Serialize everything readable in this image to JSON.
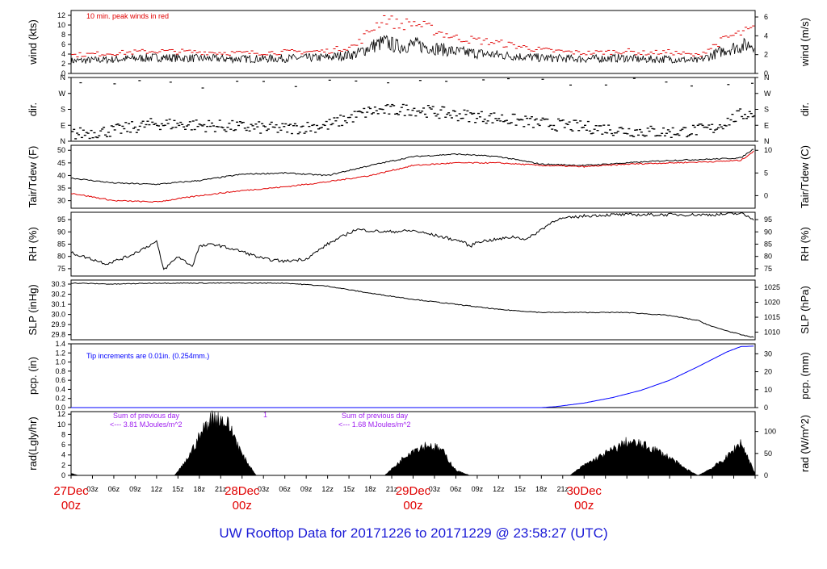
{
  "title": "UW Rooftop Data for 20171226  to  20171229 @ 23:58:27  (UTC)",
  "colors": {
    "title": "#1a1ad6",
    "date_label": "#e00000",
    "peak": "#e00000",
    "tdew": "#e00000",
    "precip": "#0000ff",
    "note_precip": "#0000ff",
    "note_rad": "#a020f0",
    "series": "#000000"
  },
  "x_axis": {
    "hour_ticks": [
      "03z",
      "06z",
      "09z",
      "12z",
      "15z",
      "18z",
      "21z",
      "03z",
      "06z",
      "09z",
      "12z",
      "15z",
      "18z",
      "21z",
      "03z",
      "06z",
      "09z",
      "12z",
      "15z",
      "18z",
      "21z"
    ],
    "date_labels": [
      {
        "date": "27Dec",
        "hour": "00z"
      },
      {
        "date": "28Dec",
        "hour": "00z"
      },
      {
        "date": "29Dec",
        "hour": "00z"
      },
      {
        "date": "30Dec",
        "hour": "00z"
      }
    ]
  },
  "notes": {
    "peak_winds": "10 min. peak winds in red",
    "tip_increments": "Tip increments are 0.01in. (0.254mm.)",
    "rad_day1_line1": "Sum of previous day",
    "rad_day1_line2": "<--- 3.81 MJoules/m^2",
    "rad_day2_line1": "Sum of previous day",
    "rad_day2_line2": "<--- 1.68 MJoules/m^2",
    "rad_marker": "1"
  },
  "panels": [
    {
      "id": "wind",
      "left_label": "wind (kts)",
      "right_label": "wind (m/s)",
      "left_ticks": [
        "0",
        "2",
        "4",
        "6",
        "8",
        "10",
        "12"
      ],
      "right_ticks": [
        "0",
        "2",
        "4",
        "6"
      ]
    },
    {
      "id": "dir",
      "left_label": "dir.",
      "right_label": "dir.",
      "left_ticks": [
        "N",
        "E",
        "S",
        "W",
        "N"
      ],
      "right_ticks": [
        "N",
        "E",
        "S",
        "W",
        "N"
      ]
    },
    {
      "id": "temp",
      "left_label": "Tair/Tdew (F)",
      "right_label": "Tair/Tdew (C)",
      "left_ticks": [
        "30",
        "35",
        "40",
        "45",
        "50"
      ],
      "right_ticks": [
        "0",
        "5",
        "10"
      ]
    },
    {
      "id": "rh",
      "left_label": "RH (%)",
      "right_label": "RH (%)",
      "left_ticks": [
        "75",
        "80",
        "85",
        "90",
        "95"
      ],
      "right_ticks": [
        "75",
        "80",
        "85",
        "90",
        "95"
      ]
    },
    {
      "id": "slp",
      "left_label": "SLP (inHg)",
      "right_label": "SLP (hPa)",
      "left_ticks": [
        "29.8",
        "29.9",
        "30.0",
        "30.1",
        "30.2",
        "30.3"
      ],
      "right_ticks": [
        "1010",
        "1015",
        "1020",
        "1025"
      ]
    },
    {
      "id": "pcp",
      "left_label": "pcp. (in)",
      "right_label": "pcp. (mm)",
      "left_ticks": [
        "0.0",
        "0.2",
        "0.4",
        "0.6",
        "0.8",
        "1.0",
        "1.2",
        "1.4"
      ],
      "right_ticks": [
        "0",
        "10",
        "20",
        "30"
      ]
    },
    {
      "id": "rad",
      "left_label": "rad(Lgly/hr)",
      "right_label": "rad (W/m^2)",
      "left_ticks": [
        "0",
        "2",
        "4",
        "6",
        "8",
        "10",
        "12"
      ],
      "right_ticks": [
        "0",
        "50",
        "100"
      ]
    }
  ],
  "chart_data": [
    {
      "type": "line",
      "panel": "wind",
      "ylabel": "wind (kts)",
      "ylim": [
        0,
        13
      ],
      "x_unit": "hours since 27Dec 00z",
      "series": [
        {
          "name": "wind",
          "values_x": [
            0,
            6,
            12,
            18,
            24,
            30,
            36,
            40,
            42,
            44,
            46,
            48,
            50,
            54,
            60,
            66,
            72,
            78,
            80,
            84,
            88,
            92,
            96
          ],
          "values_y": [
            2.6,
            2.9,
            3.3,
            3.1,
            3.0,
            3.1,
            3.3,
            4.0,
            5.5,
            6.5,
            5.5,
            6.0,
            5.5,
            4.5,
            3.8,
            3.2,
            3.0,
            3.2,
            2.9,
            3.0,
            2.6,
            5.0,
            6.2
          ]
        },
        {
          "name": "10 min. peak winds",
          "values_x": [
            0,
            6,
            12,
            18,
            24,
            30,
            36,
            40,
            42,
            44,
            46,
            48,
            50,
            54,
            60,
            66,
            72,
            78,
            80,
            84,
            88,
            92,
            96
          ],
          "values_y": [
            3.6,
            4.0,
            4.4,
            4.2,
            4.0,
            4.2,
            4.4,
            5.5,
            8.5,
            11.0,
            9.5,
            10.0,
            9.0,
            7.0,
            6.0,
            4.6,
            4.0,
            4.4,
            4.0,
            4.2,
            3.5,
            7.0,
            8.8
          ]
        }
      ]
    },
    {
      "type": "scatter",
      "panel": "dir",
      "ylabel": "dir.",
      "ylim": [
        0,
        360
      ],
      "x_unit": "hours since 27Dec 00z",
      "series": [
        {
          "name": "dir.",
          "values_x": [
            0,
            6,
            12,
            18,
            24,
            30,
            36,
            42,
            48,
            54,
            60,
            66,
            72,
            78,
            84,
            90,
            94,
            96
          ],
          "values_y": [
            40,
            60,
            100,
            90,
            80,
            70,
            90,
            170,
            180,
            150,
            130,
            100,
            80,
            60,
            50,
            70,
            150,
            160
          ]
        }
      ]
    },
    {
      "type": "line",
      "panel": "temp",
      "ylabel": "Tair/Tdew (F)",
      "ylim": [
        27,
        52
      ],
      "x_unit": "hours since 27Dec 00z",
      "series": [
        {
          "name": "Tair",
          "values_x": [
            0,
            6,
            12,
            18,
            24,
            30,
            36,
            42,
            48,
            54,
            60,
            66,
            72,
            78,
            84,
            90,
            94,
            96
          ],
          "values_y": [
            39.0,
            37.0,
            36.5,
            38.0,
            40.5,
            41.0,
            40.0,
            44.0,
            47.5,
            48.5,
            47.5,
            44.5,
            44.0,
            45.0,
            46.0,
            46.5,
            47.0,
            51.0
          ]
        },
        {
          "name": "Tdew",
          "values_x": [
            0,
            6,
            12,
            18,
            24,
            30,
            36,
            42,
            48,
            54,
            60,
            66,
            72,
            78,
            84,
            90,
            94,
            96
          ],
          "values_y": [
            33.0,
            30.0,
            29.5,
            32.0,
            34.0,
            35.5,
            37.5,
            40.0,
            44.0,
            45.0,
            45.0,
            44.0,
            43.5,
            44.5,
            45.0,
            45.5,
            46.0,
            50.0
          ]
        }
      ]
    },
    {
      "type": "line",
      "panel": "rh",
      "ylabel": "RH (%)",
      "ylim": [
        72,
        98
      ],
      "x_unit": "hours since 27Dec 00z",
      "series": [
        {
          "name": "RH",
          "values_x": [
            0,
            5,
            8,
            12,
            13,
            15,
            17,
            18,
            20,
            24,
            27,
            30,
            33,
            36,
            40,
            44,
            48,
            52,
            55,
            56,
            57,
            60,
            62,
            64,
            66,
            68,
            72,
            76,
            80,
            84,
            90,
            94,
            96
          ],
          "values_y": [
            81.5,
            77,
            80,
            86,
            74.5,
            80,
            76,
            84,
            85,
            82,
            79,
            78,
            79,
            85,
            91,
            90,
            90.5,
            88,
            86,
            84,
            86,
            87,
            88,
            87,
            91,
            95,
            96.5,
            97,
            97,
            97,
            97,
            97.5,
            95
          ]
        }
      ]
    },
    {
      "type": "line",
      "panel": "slp",
      "ylabel": "SLP (inHg)",
      "ylim": [
        29.75,
        30.34
      ],
      "x_unit": "hours since 27Dec 00z",
      "series": [
        {
          "name": "SLP",
          "values_x": [
            0,
            6,
            12,
            18,
            24,
            30,
            36,
            42,
            48,
            54,
            60,
            66,
            72,
            78,
            84,
            88,
            90,
            94,
            96
          ],
          "values_y": [
            30.31,
            30.3,
            30.31,
            30.31,
            30.31,
            30.31,
            30.28,
            30.21,
            30.15,
            30.1,
            30.05,
            30.02,
            30.02,
            30.02,
            29.99,
            29.94,
            29.88,
            29.8,
            29.77
          ]
        }
      ]
    },
    {
      "type": "line",
      "panel": "pcp",
      "ylabel": "pcp. (in)",
      "ylim": [
        0,
        1.4
      ],
      "x_unit": "hours since 27Dec 00z",
      "series": [
        {
          "name": "pcp",
          "values_x": [
            0,
            60,
            66,
            68,
            72,
            76,
            80,
            84,
            88,
            92,
            94,
            96
          ],
          "values_y": [
            0,
            0,
            0,
            0.02,
            0.1,
            0.22,
            0.38,
            0.6,
            0.9,
            1.22,
            1.34,
            1.35
          ]
        }
      ]
    },
    {
      "type": "area",
      "panel": "rad",
      "ylabel": "rad(Lgly/hr)",
      "ylim": [
        0,
        12.5
      ],
      "x_unit": "hours since 27Dec 00z",
      "series": [
        {
          "name": "rad",
          "values_x": [
            0,
            1,
            14.5,
            16,
            18,
            19,
            20,
            21,
            22,
            23,
            24,
            26,
            44,
            46,
            47,
            48,
            50,
            51,
            52,
            53,
            54,
            56,
            70,
            72,
            74,
            76,
            78,
            80,
            82,
            84,
            86,
            88,
            90,
            92,
            94,
            96
          ],
          "values_y": [
            0.4,
            0,
            0,
            2.5,
            7.5,
            10.0,
            11.5,
            11.0,
            10.0,
            7.5,
            4.0,
            0,
            0,
            2.5,
            4.0,
            5.0,
            6.0,
            5.5,
            5.0,
            3.0,
            1.0,
            0,
            0,
            2.0,
            3.5,
            5.0,
            6.5,
            6.0,
            5.0,
            3.5,
            1.5,
            0,
            1.5,
            3.5,
            6.5,
            0.4
          ]
        }
      ]
    }
  ]
}
